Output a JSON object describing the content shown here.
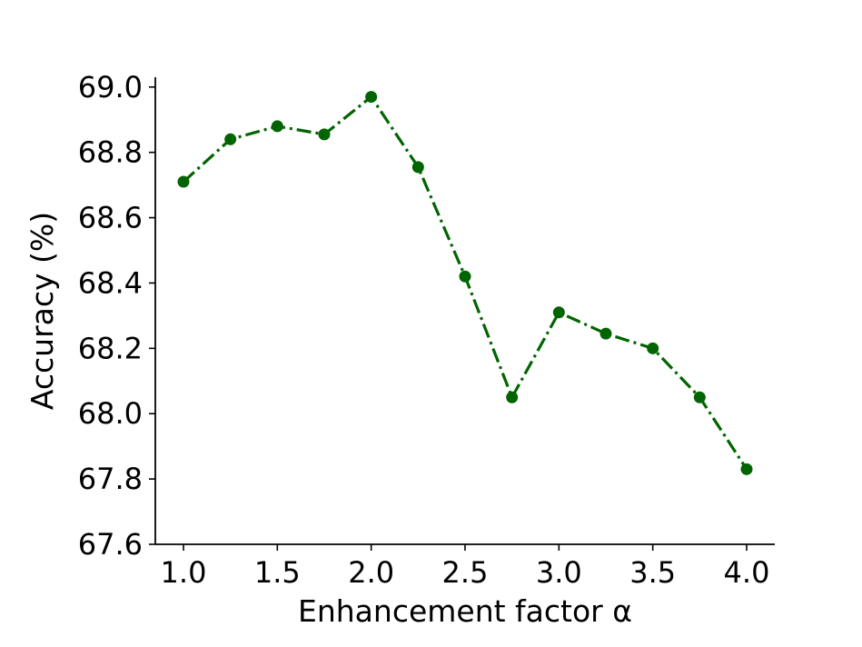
{
  "chart_data": {
    "type": "line",
    "xlabel": "Enhancement factor α",
    "ylabel": "Accuracy (%)",
    "xlim": [
      0.85,
      4.15
    ],
    "ylim": [
      67.6,
      69.03
    ],
    "xticks": [
      "1.0",
      "1.5",
      "2.0",
      "2.5",
      "3.0",
      "3.5",
      "4.0"
    ],
    "yticks": [
      "67.6",
      "67.8",
      "68.0",
      "68.2",
      "68.4",
      "68.6",
      "68.8",
      "69.0"
    ],
    "grid": false,
    "legend": "none",
    "series": [
      {
        "color": "#006400",
        "line_style": "dash-dot",
        "marker": "circle",
        "x": [
          1.0,
          1.25,
          1.5,
          1.75,
          2.0,
          2.25,
          2.5,
          2.75,
          3.0,
          3.25,
          3.5,
          3.75,
          4.0
        ],
        "y": [
          68.71,
          68.84,
          68.88,
          68.855,
          68.97,
          68.755,
          68.42,
          68.05,
          68.31,
          68.245,
          68.2,
          68.05,
          67.83
        ]
      }
    ]
  }
}
